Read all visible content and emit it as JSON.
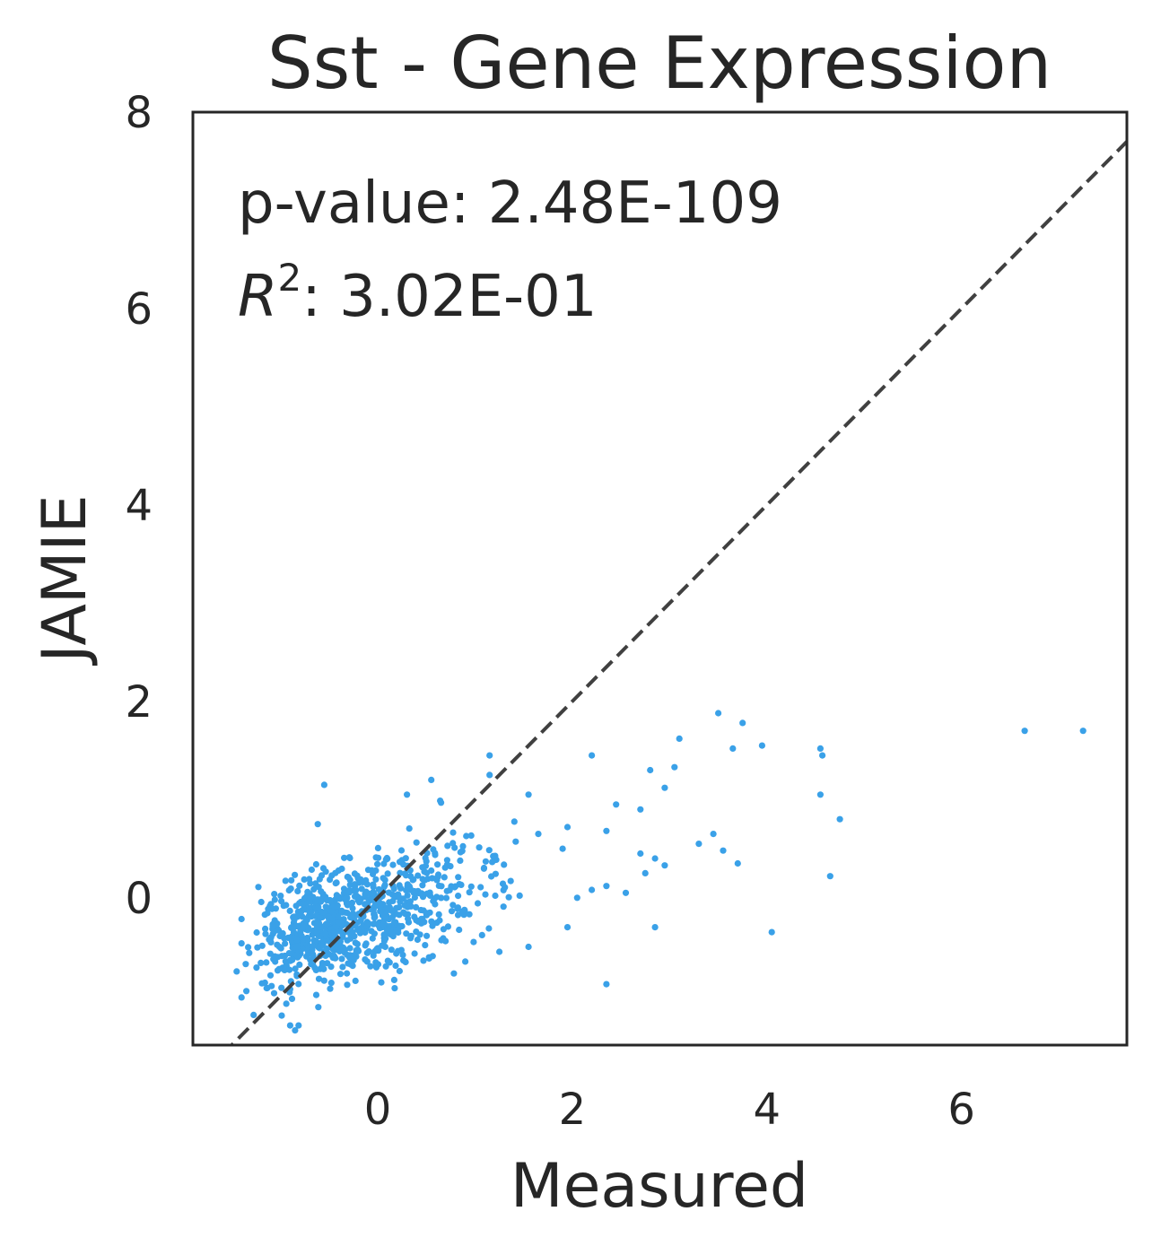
{
  "chart_data": {
    "type": "scatter",
    "title": "Sst - Gene Expression",
    "xlabel": "Measured",
    "ylabel": "JAMIE",
    "xlim": [
      -1.9,
      7.7
    ],
    "ylim": [
      -1.5,
      8.0
    ],
    "x_ticks": [
      0,
      2,
      4,
      6
    ],
    "y_ticks": [
      0,
      2,
      4,
      6,
      8
    ],
    "grid": false,
    "point_color": "#3aa1e8",
    "reference_line": {
      "style": "dashed",
      "color": "#404040",
      "slope": 1,
      "intercept": 0
    },
    "annotation": {
      "pvalue_label": "p-value: 2.48E-109",
      "r2_symbol": "R",
      "r2_exp": "2",
      "r2_value": ": 3.02E-01"
    },
    "outliers": [
      {
        "x": 6.65,
        "y": 1.7
      },
      {
        "x": 7.25,
        "y": 1.7
      },
      {
        "x": 3.5,
        "y": 1.88
      },
      {
        "x": 3.75,
        "y": 1.78
      },
      {
        "x": 3.1,
        "y": 1.62
      },
      {
        "x": 3.65,
        "y": 1.52
      },
      {
        "x": 3.95,
        "y": 1.55
      },
      {
        "x": 4.55,
        "y": 1.52
      },
      {
        "x": 4.57,
        "y": 1.45
      },
      {
        "x": 2.2,
        "y": 1.45
      },
      {
        "x": 2.8,
        "y": 1.3
      },
      {
        "x": 3.05,
        "y": 1.33
      },
      {
        "x": 2.95,
        "y": 1.12
      },
      {
        "x": 4.55,
        "y": 1.05
      },
      {
        "x": 2.45,
        "y": 0.95
      },
      {
        "x": 2.7,
        "y": 0.9
      },
      {
        "x": 4.75,
        "y": 0.8
      },
      {
        "x": 2.35,
        "y": 0.68
      },
      {
        "x": 3.45,
        "y": 0.65
      },
      {
        "x": 3.3,
        "y": 0.55
      },
      {
        "x": 3.55,
        "y": 0.48
      },
      {
        "x": 2.7,
        "y": 0.45
      },
      {
        "x": 2.85,
        "y": 0.4
      },
      {
        "x": 3.7,
        "y": 0.35
      },
      {
        "x": 2.95,
        "y": 0.33
      },
      {
        "x": 2.75,
        "y": 0.25
      },
      {
        "x": 4.65,
        "y": 0.22
      },
      {
        "x": 2.35,
        "y": 0.12
      },
      {
        "x": 2.55,
        "y": 0.05
      },
      {
        "x": 4.05,
        "y": -0.35
      },
      {
        "x": 2.85,
        "y": -0.3
      },
      {
        "x": 2.35,
        "y": -0.88
      },
      {
        "x": 2.2,
        "y": 0.08
      },
      {
        "x": 2.05,
        "y": 0.0
      },
      {
        "x": 1.95,
        "y": 0.72
      },
      {
        "x": 1.9,
        "y": 0.5
      },
      {
        "x": 1.65,
        "y": 0.65
      },
      {
        "x": 1.55,
        "y": 1.05
      },
      {
        "x": 1.15,
        "y": 1.45
      },
      {
        "x": 1.15,
        "y": 1.25
      },
      {
        "x": 0.55,
        "y": 1.2
      },
      {
        "x": 0.3,
        "y": 1.05
      },
      {
        "x": -0.55,
        "y": 1.15
      },
      {
        "x": -1.45,
        "y": -0.75
      },
      {
        "x": -1.35,
        "y": -0.95
      },
      {
        "x": -0.9,
        "y": -1.3
      },
      {
        "x": -0.85,
        "y": -1.35
      },
      {
        "x": 0.9,
        "y": -0.65
      },
      {
        "x": 1.25,
        "y": -0.55
      },
      {
        "x": 1.55,
        "y": -0.5
      },
      {
        "x": 1.95,
        "y": -0.3
      }
    ],
    "dense_cluster": {
      "n": 900,
      "center": [
        -0.55,
        -0.3
      ],
      "x_range": [
        -1.4,
        1.6
      ],
      "y_range": [
        -1.3,
        1.0
      ]
    }
  }
}
